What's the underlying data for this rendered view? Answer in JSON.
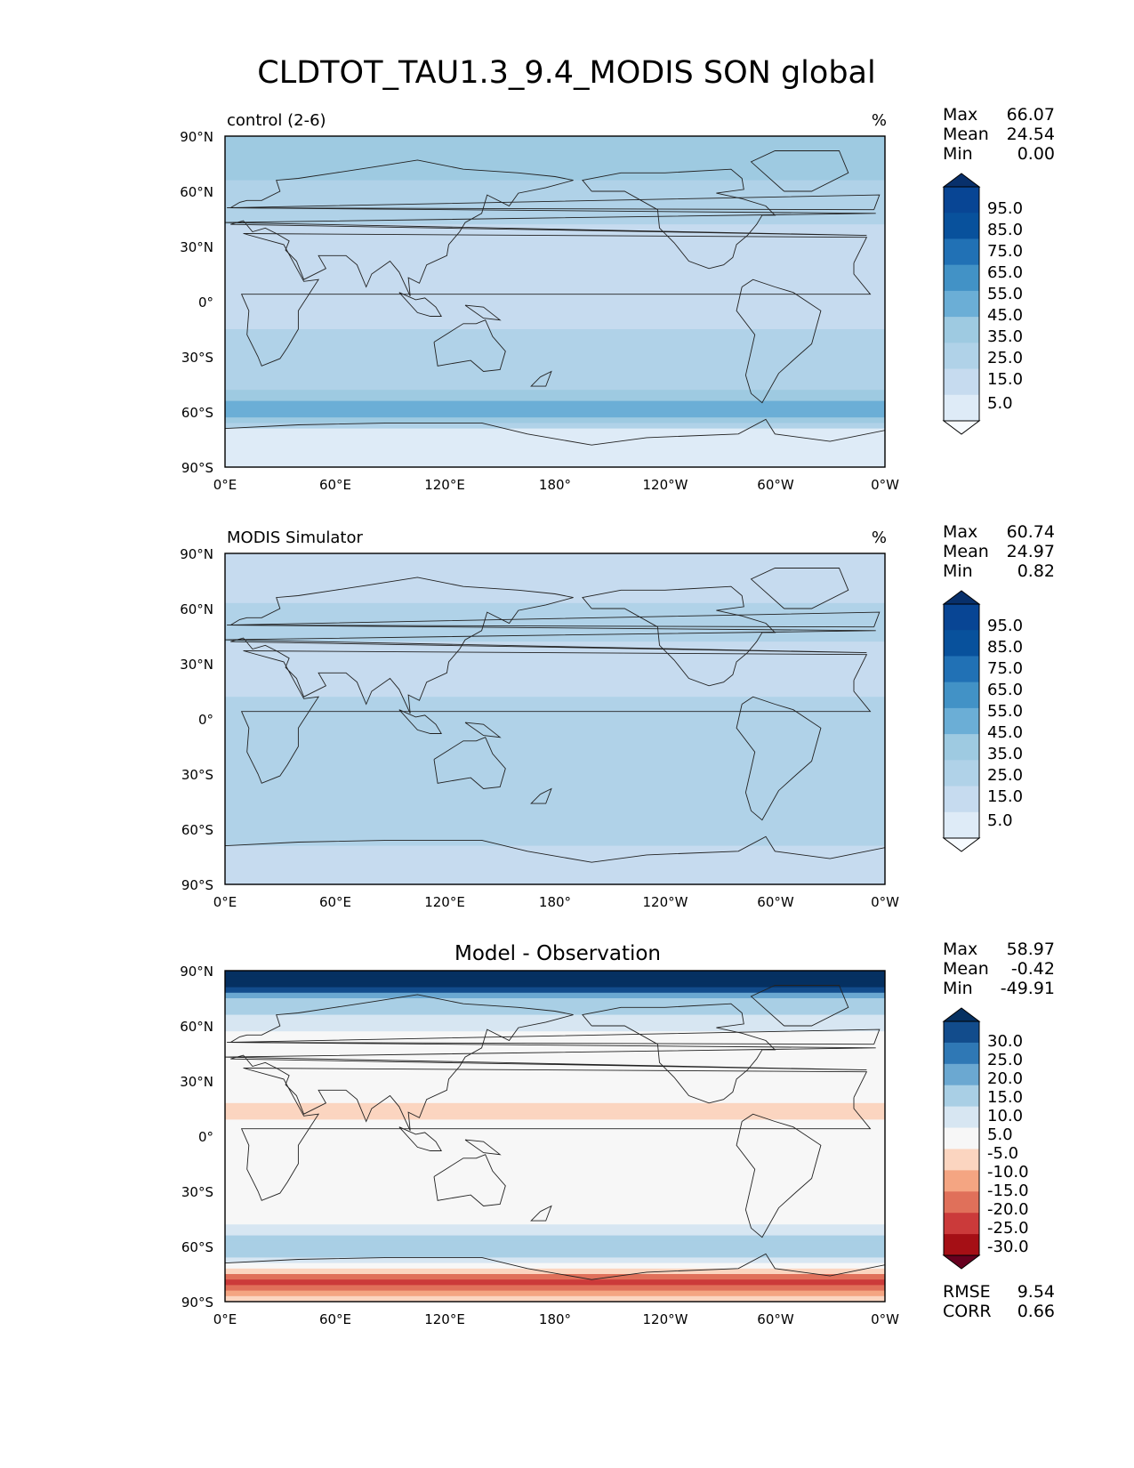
{
  "figure": {
    "title": "CLDTOT_TAU1.3_9.4_MODIS SON global"
  },
  "axes": {
    "lat_ticks": [
      "90°N",
      "60°N",
      "30°N",
      "0°",
      "30°S",
      "60°S",
      "90°S"
    ],
    "lon_ticks": [
      "0°E",
      "60°E",
      "120°E",
      "180°",
      "120°W",
      "60°W",
      "0°W"
    ]
  },
  "colors": {
    "blues": [
      "#f7fbff",
      "#deebf7",
      "#c6dbef",
      "#b0d2e8",
      "#9ecae1",
      "#6baed6",
      "#4292c6",
      "#2171b5",
      "#08519c",
      "#084594",
      "#08306b"
    ],
    "diverging": [
      "#67001f",
      "#a50f15",
      "#cb3a3a",
      "#e0705a",
      "#f4a582",
      "#fbd5c0",
      "#f7f7f7",
      "#d7e6f2",
      "#a9cfe5",
      "#6ba8d1",
      "#2f78b5",
      "#124c8c",
      "#053061"
    ],
    "coastline": "#222222"
  },
  "chart_data": [
    {
      "type": "heatmap",
      "panel": "control",
      "left_title": "control (2-6)",
      "units": "%",
      "stats": [
        {
          "label": "Max",
          "value": "66.07"
        },
        {
          "label": "Mean",
          "value": "24.54"
        },
        {
          "label": "Min",
          "value": "0.00"
        }
      ],
      "colorbar": {
        "levels": [
          0,
          5,
          10,
          15,
          20,
          25,
          30,
          35,
          40,
          45,
          50,
          55,
          60,
          65,
          70,
          75,
          80,
          85,
          90,
          95,
          100
        ],
        "tick_labels": [
          "95.0",
          "85.0",
          "75.0",
          "65.0",
          "55.0",
          "45.0",
          "35.0",
          "25.0",
          "15.0",
          "5.0"
        ],
        "extend": "both",
        "palette": "blues"
      },
      "xlim": [
        0,
        360
      ],
      "ylim": [
        -90,
        90
      ],
      "zonal_profile": [
        {
          "lat": 90,
          "value": 40
        },
        {
          "lat": 75,
          "value": 38
        },
        {
          "lat": 60,
          "value": 32
        },
        {
          "lat": 45,
          "value": 26
        },
        {
          "lat": 30,
          "value": 20
        },
        {
          "lat": 15,
          "value": 20
        },
        {
          "lat": 0,
          "value": 22
        },
        {
          "lat": -15,
          "value": 25
        },
        {
          "lat": -30,
          "value": 26
        },
        {
          "lat": -45,
          "value": 32
        },
        {
          "lat": -55,
          "value": 45
        },
        {
          "lat": -60,
          "value": 50
        },
        {
          "lat": -65,
          "value": 40
        },
        {
          "lat": -72,
          "value": 8
        },
        {
          "lat": -90,
          "value": 5
        }
      ]
    },
    {
      "type": "heatmap",
      "panel": "observation",
      "left_title": "MODIS Simulator",
      "units": "%",
      "stats": [
        {
          "label": "Max",
          "value": "60.74"
        },
        {
          "label": "Mean",
          "value": "24.97"
        },
        {
          "label": "Min",
          "value": "0.82"
        }
      ],
      "colorbar": {
        "levels": [
          0,
          5,
          10,
          15,
          20,
          25,
          30,
          35,
          40,
          45,
          50,
          55,
          60,
          65,
          70,
          75,
          80,
          85,
          90,
          95,
          100
        ],
        "tick_labels": [
          "95.0",
          "85.0",
          "75.0",
          "65.0",
          "55.0",
          "45.0",
          "35.0",
          "25.0",
          "15.0",
          "5.0"
        ],
        "extend": "both",
        "palette": "blues"
      },
      "xlim": [
        0,
        360
      ],
      "ylim": [
        -90,
        90
      ],
      "zonal_profile": [
        {
          "lat": 90,
          "value": 18
        },
        {
          "lat": 75,
          "value": 22
        },
        {
          "lat": 60,
          "value": 26
        },
        {
          "lat": 45,
          "value": 26
        },
        {
          "lat": 30,
          "value": 22
        },
        {
          "lat": 15,
          "value": 24
        },
        {
          "lat": 0,
          "value": 30
        },
        {
          "lat": -15,
          "value": 28
        },
        {
          "lat": -30,
          "value": 30
        },
        {
          "lat": -45,
          "value": 33
        },
        {
          "lat": -55,
          "value": 35
        },
        {
          "lat": -60,
          "value": 34
        },
        {
          "lat": -65,
          "value": 30
        },
        {
          "lat": -72,
          "value": 22
        },
        {
          "lat": -90,
          "value": 20
        }
      ]
    },
    {
      "type": "heatmap",
      "panel": "difference",
      "center_title": "Model - Observation",
      "stats": [
        {
          "label": "Max",
          "value": "58.97"
        },
        {
          "label": "Mean",
          "value": "-0.42"
        },
        {
          "label": "Min",
          "value": "-49.91"
        }
      ],
      "bottom_stats": [
        {
          "label": "RMSE",
          "value": "9.54"
        },
        {
          "label": "CORR",
          "value": "0.66"
        }
      ],
      "colorbar": {
        "levels": [
          -35,
          -30,
          -25,
          -20,
          -15,
          -10,
          -5,
          5,
          10,
          15,
          20,
          25,
          30,
          35
        ],
        "tick_labels": [
          "30.0",
          "25.0",
          "20.0",
          "15.0",
          "10.0",
          "5.0",
          "-5.0",
          "-10.0",
          "-15.0",
          "-20.0",
          "-25.0",
          "-30.0"
        ],
        "extend": "both",
        "palette": "diverging"
      },
      "xlim": [
        0,
        360
      ],
      "ylim": [
        -90,
        90
      ],
      "zonal_profile": [
        {
          "lat": 90,
          "value": 35
        },
        {
          "lat": 82,
          "value": 32
        },
        {
          "lat": 75,
          "value": 14
        },
        {
          "lat": 60,
          "value": 6
        },
        {
          "lat": 45,
          "value": -4
        },
        {
          "lat": 30,
          "value": 0
        },
        {
          "lat": 15,
          "value": -6
        },
        {
          "lat": 0,
          "value": -4
        },
        {
          "lat": -15,
          "value": 0
        },
        {
          "lat": -30,
          "value": 0
        },
        {
          "lat": -45,
          "value": 2
        },
        {
          "lat": -55,
          "value": 12
        },
        {
          "lat": -62,
          "value": 15
        },
        {
          "lat": -70,
          "value": 6
        },
        {
          "lat": -78,
          "value": -22
        },
        {
          "lat": -90,
          "value": -8
        }
      ]
    }
  ]
}
